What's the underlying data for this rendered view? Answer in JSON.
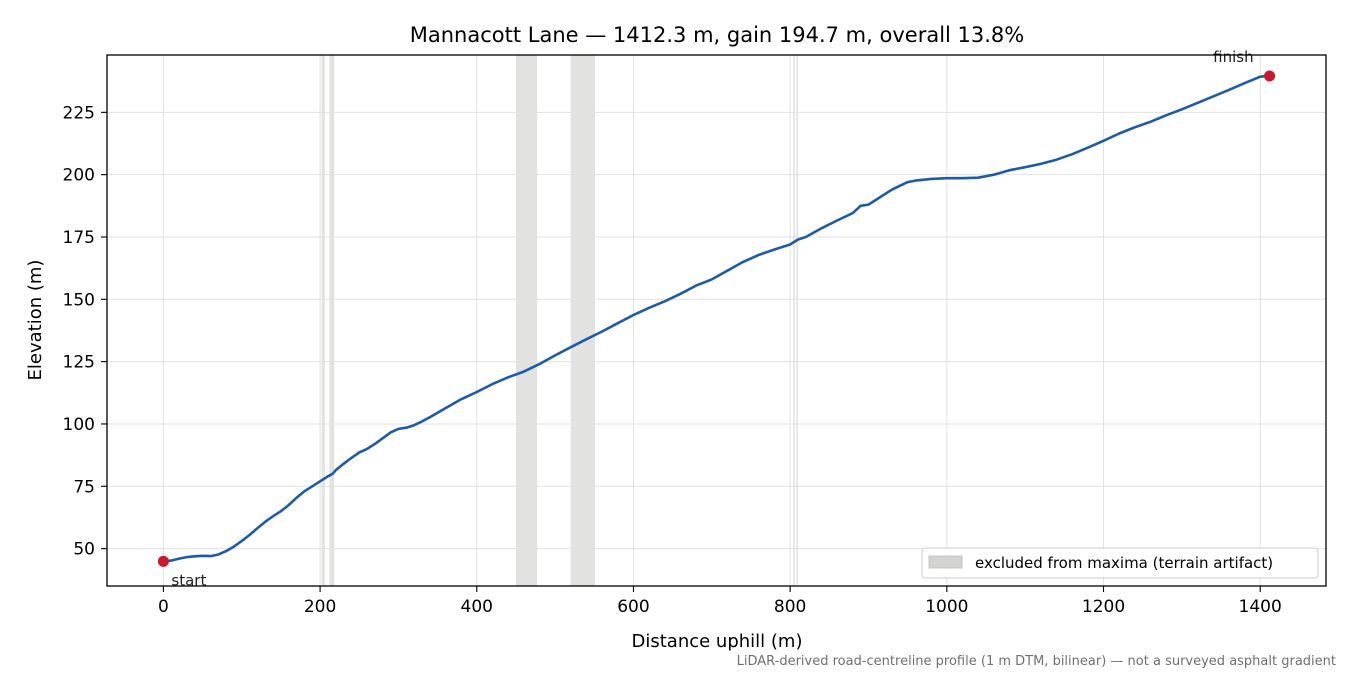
{
  "chart_data": {
    "type": "line",
    "title": "Mannacott Lane — 1412.3 m, gain 194.7 m, overall 13.8%",
    "xlabel": "Distance uphill (m)",
    "ylabel": "Elevation (m)",
    "xlim": [
      -72,
      1484
    ],
    "ylim": [
      35,
      248
    ],
    "xticks": [
      0,
      200,
      400,
      600,
      800,
      1000,
      1200,
      1400
    ],
    "yticks": [
      50,
      75,
      100,
      125,
      150,
      175,
      200,
      225
    ],
    "grid": true,
    "legend": {
      "placement": "bottom-right",
      "entries": [
        "excluded from maxima (terrain artifact)"
      ]
    },
    "footnote": "LiDAR-derived road-centreline profile (1 m DTM, bilinear) — not a surveyed asphalt gradient",
    "colors": {
      "line": "#1f5aa6",
      "endpoints": "#c8192e",
      "excluded": "#d3d3d1",
      "grid": "#e2e2e2"
    },
    "excluded_ranges": [
      [
        202,
        206
      ],
      [
        212,
        218
      ],
      [
        450,
        477
      ],
      [
        520,
        551
      ],
      [
        804,
        806
      ],
      [
        808,
        810
      ]
    ],
    "series": [
      {
        "x": [
          0,
          10,
          20,
          30,
          40,
          50,
          60,
          70,
          80,
          90,
          100,
          110,
          120,
          130,
          140,
          150,
          160,
          170,
          180,
          190,
          200,
          210,
          216,
          220,
          230,
          240,
          250,
          260,
          270,
          280,
          290,
          300,
          310,
          320,
          330,
          340,
          350,
          360,
          380,
          400,
          420,
          440,
          460,
          480,
          500,
          520,
          540,
          560,
          580,
          600,
          620,
          640,
          660,
          680,
          700,
          720,
          740,
          760,
          780,
          800,
          810,
          820,
          840,
          860,
          880,
          890,
          900,
          910,
          930,
          950,
          960,
          980,
          1000,
          1020,
          1040,
          1060,
          1080,
          1100,
          1120,
          1140,
          1160,
          1180,
          1200,
          1220,
          1240,
          1260,
          1280,
          1300,
          1320,
          1340,
          1360,
          1380,
          1400,
          1412
        ],
        "y": [
          44.9,
          45.2,
          46.0,
          46.6,
          46.9,
          47.1,
          47.0,
          47.6,
          49.0,
          50.8,
          53.0,
          55.5,
          58.2,
          60.8,
          63.0,
          65.0,
          67.5,
          70.4,
          73.0,
          75.0,
          77.0,
          79.0,
          80.0,
          81.5,
          84.0,
          86.4,
          88.6,
          90.0,
          92.0,
          94.3,
          96.6,
          98.0,
          98.5,
          99.5,
          101.0,
          102.7,
          104.5,
          106.3,
          109.9,
          112.8,
          116.0,
          118.7,
          121.0,
          124.0,
          127.5,
          130.8,
          134.0,
          137.1,
          140.4,
          143.7,
          146.6,
          149.2,
          152.2,
          155.5,
          158.0,
          161.5,
          165.0,
          167.8,
          170.0,
          172.0,
          174.0,
          175.0,
          178.5,
          181.6,
          184.6,
          187.5,
          188.0,
          190.0,
          194.0,
          197.0,
          197.6,
          198.3,
          198.6,
          198.6,
          198.8,
          200.0,
          201.8,
          203.0,
          204.3,
          206.0,
          208.2,
          210.8,
          213.6,
          216.5,
          219.0,
          221.2,
          223.8,
          226.2,
          228.8,
          231.4,
          234.0,
          236.7,
          239.3,
          239.6
        ]
      }
    ],
    "annotations": [
      {
        "text": "start",
        "x": 0,
        "y": 44.9
      },
      {
        "text": "finish",
        "x": 1412,
        "y": 239.6
      }
    ]
  }
}
